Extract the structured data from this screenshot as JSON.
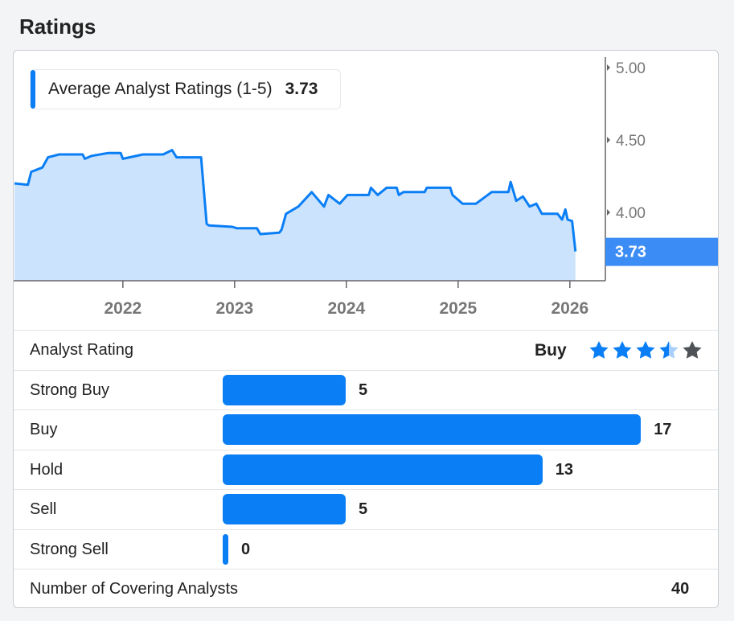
{
  "title": "Ratings",
  "chart_data": {
    "type": "area",
    "legend_label": "Average Analyst Ratings (1-5)",
    "current_value": "3.73",
    "xlabel": "",
    "ylabel": "",
    "x_ticks": [
      "2022",
      "2023",
      "2024",
      "2025",
      "2026"
    ],
    "y_ticks": [
      "4.00",
      "4.50",
      "5.00"
    ],
    "ylim": [
      3.53,
      5.05
    ],
    "xlim": [
      2021.03,
      2026.3
    ],
    "color": "#0a7ef5",
    "fill": "#cce3fd",
    "points": [
      [
        2021.03,
        4.2
      ],
      [
        2021.15,
        4.19
      ],
      [
        2021.18,
        4.28
      ],
      [
        2021.28,
        4.31
      ],
      [
        2021.33,
        4.38
      ],
      [
        2021.43,
        4.4
      ],
      [
        2021.64,
        4.4
      ],
      [
        2021.66,
        4.37
      ],
      [
        2021.72,
        4.39
      ],
      [
        2021.87,
        4.41
      ],
      [
        2021.98,
        4.41
      ],
      [
        2022.0,
        4.37
      ],
      [
        2022.18,
        4.4
      ],
      [
        2022.36,
        4.4
      ],
      [
        2022.44,
        4.43
      ],
      [
        2022.48,
        4.38
      ],
      [
        2022.7,
        4.38
      ],
      [
        2022.75,
        3.92
      ],
      [
        2022.77,
        3.91
      ],
      [
        2022.98,
        3.9
      ],
      [
        2023.02,
        3.89
      ],
      [
        2023.2,
        3.89
      ],
      [
        2023.23,
        3.85
      ],
      [
        2023.4,
        3.86
      ],
      [
        2023.42,
        3.88
      ],
      [
        2023.46,
        3.99
      ],
      [
        2023.57,
        4.04
      ],
      [
        2023.69,
        4.14
      ],
      [
        2023.8,
        4.04
      ],
      [
        2023.84,
        4.12
      ],
      [
        2023.94,
        4.06
      ],
      [
        2024.01,
        4.12
      ],
      [
        2024.2,
        4.12
      ],
      [
        2024.22,
        4.17
      ],
      [
        2024.28,
        4.12
      ],
      [
        2024.36,
        4.17
      ],
      [
        2024.45,
        4.17
      ],
      [
        2024.47,
        4.12
      ],
      [
        2024.51,
        4.14
      ],
      [
        2024.7,
        4.14
      ],
      [
        2024.72,
        4.17
      ],
      [
        2024.93,
        4.17
      ],
      [
        2024.95,
        4.12
      ],
      [
        2025.04,
        4.06
      ],
      [
        2025.16,
        4.06
      ],
      [
        2025.3,
        4.14
      ],
      [
        2025.45,
        4.14
      ],
      [
        2025.47,
        4.21
      ],
      [
        2025.52,
        4.08
      ],
      [
        2025.58,
        4.11
      ],
      [
        2025.64,
        4.04
      ],
      [
        2025.7,
        4.06
      ],
      [
        2025.75,
        3.99
      ],
      [
        2025.89,
        3.99
      ],
      [
        2025.93,
        3.95
      ],
      [
        2025.96,
        4.02
      ],
      [
        2025.98,
        3.95
      ],
      [
        2026.02,
        3.94
      ],
      [
        2026.05,
        3.73
      ]
    ]
  },
  "rating": {
    "label": "Analyst Rating",
    "value": "Buy",
    "stars": 3.5
  },
  "distribution": [
    {
      "label": "Strong Buy",
      "count": 5
    },
    {
      "label": "Buy",
      "count": 17
    },
    {
      "label": "Hold",
      "count": 13
    },
    {
      "label": "Sell",
      "count": 5
    },
    {
      "label": "Strong Sell",
      "count": 0
    }
  ],
  "covering": {
    "label": "Number of Covering Analysts",
    "value": "40"
  }
}
